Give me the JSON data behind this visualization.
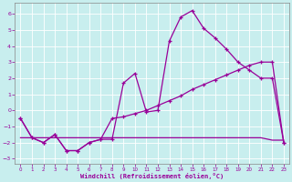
{
  "xlabel": "Windchill (Refroidissement éolien,°C)",
  "background_color": "#c8eeee",
  "grid_color": "#aadddd",
  "line_color": "#990099",
  "xlim": [
    -0.5,
    23.5
  ],
  "ylim": [
    -3.3,
    6.7
  ],
  "xticks": [
    0,
    1,
    2,
    3,
    4,
    5,
    6,
    7,
    8,
    9,
    10,
    11,
    12,
    13,
    14,
    15,
    16,
    17,
    18,
    19,
    20,
    21,
    22,
    23
  ],
  "yticks": [
    -3,
    -2,
    -1,
    0,
    1,
    2,
    3,
    4,
    5,
    6
  ],
  "line1_x": [
    0,
    1,
    2,
    3,
    4,
    5,
    6,
    7,
    8,
    9,
    10,
    11,
    12,
    13,
    14,
    15,
    16,
    17,
    18,
    19,
    20,
    21,
    22,
    23
  ],
  "line1_y": [
    -0.5,
    -1.7,
    -2.0,
    -1.5,
    -2.5,
    -2.5,
    -2.0,
    -1.8,
    -1.8,
    1.7,
    2.3,
    -0.1,
    0.0,
    4.3,
    5.8,
    6.2,
    5.1,
    4.5,
    3.8,
    3.0,
    2.5,
    2.0,
    2.0,
    -2.0
  ],
  "line2_x": [
    0,
    1,
    2,
    3,
    4,
    5,
    6,
    7,
    8,
    9,
    10,
    11,
    12,
    13,
    14,
    15,
    16,
    17,
    18,
    19,
    20,
    21,
    22,
    23
  ],
  "line2_y": [
    -0.5,
    -1.7,
    -2.0,
    -1.5,
    -2.5,
    -2.5,
    -2.0,
    -1.8,
    -0.5,
    -0.4,
    -0.2,
    0.0,
    0.3,
    0.6,
    0.9,
    1.3,
    1.6,
    1.9,
    2.2,
    2.5,
    2.8,
    3.0,
    3.0,
    -2.0
  ],
  "line3_x": [
    0,
    1,
    2,
    3,
    4,
    5,
    6,
    7,
    8,
    9,
    10,
    11,
    12,
    13,
    14,
    15,
    16,
    17,
    18,
    19,
    20,
    21,
    22,
    23
  ],
  "line3_y": [
    -1.7,
    -1.7,
    -1.7,
    -1.7,
    -1.7,
    -1.7,
    -1.7,
    -1.7,
    -1.7,
    -1.7,
    -1.7,
    -1.7,
    -1.7,
    -1.7,
    -1.7,
    -1.7,
    -1.7,
    -1.7,
    -1.7,
    -1.7,
    -1.7,
    -1.7,
    -1.85,
    -1.85
  ]
}
